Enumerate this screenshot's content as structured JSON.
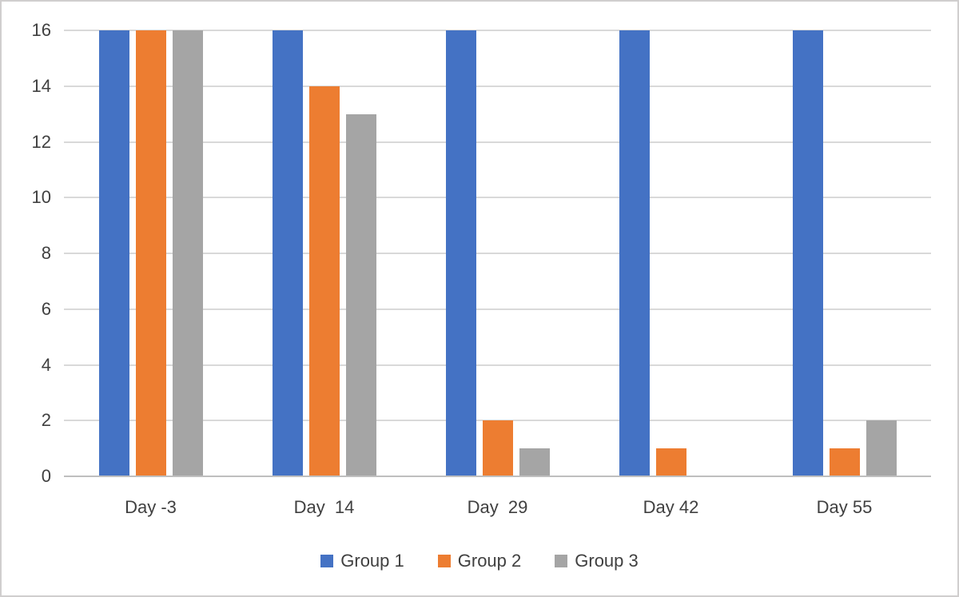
{
  "chart_data": {
    "type": "bar",
    "title": "",
    "xlabel": "",
    "ylabel": "",
    "categories": [
      "Day -3",
      "Day  14",
      "Day  29",
      "Day 42",
      "Day 55"
    ],
    "series": [
      {
        "name": "Group 1",
        "color": "#4472C4",
        "values": [
          16,
          16,
          16,
          16,
          16
        ]
      },
      {
        "name": "Group 2",
        "color": "#ED7D31",
        "values": [
          16,
          14,
          2,
          1,
          1
        ]
      },
      {
        "name": "Group 3",
        "color": "#A5A5A5",
        "values": [
          16,
          13,
          1,
          0,
          2
        ]
      }
    ],
    "ylim": [
      0,
      16
    ],
    "ytick_interval": 2,
    "ytick_labels": [
      "0",
      "2",
      "4",
      "6",
      "8",
      "10",
      "12",
      "14",
      "16"
    ],
    "grid": true,
    "legend_position": "bottom"
  },
  "colors": {
    "background": "#FFFFFF",
    "border": "#D0CECE",
    "gridline": "#D9D9D9",
    "axis_line": "#BFBFBF",
    "text": "#404040"
  }
}
